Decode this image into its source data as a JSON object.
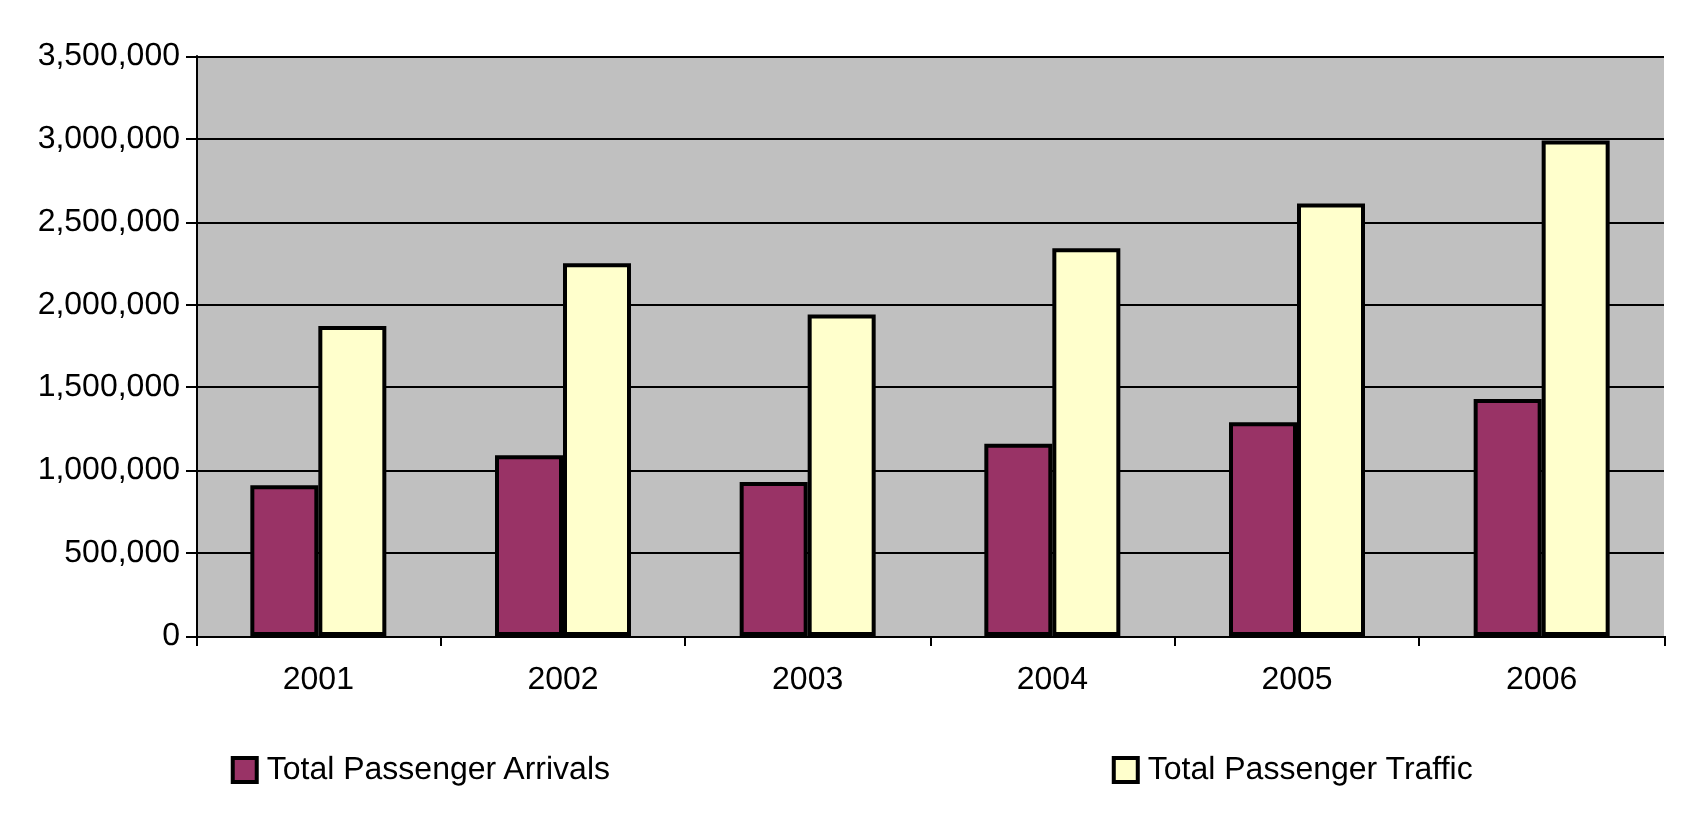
{
  "chart_data": {
    "type": "bar",
    "categories": [
      "2001",
      "2002",
      "2003",
      "2004",
      "2005",
      "2006"
    ],
    "series": [
      {
        "name": "Total Passenger Arrivals",
        "color": "#993366",
        "values": [
          910000,
          1090000,
          930000,
          1160000,
          1290000,
          1430000
        ]
      },
      {
        "name": "Total Passenger Traffic",
        "color": "#ffffcc",
        "values": [
          1870000,
          2250000,
          1940000,
          2340000,
          2610000,
          2990000
        ]
      }
    ],
    "ylim": [
      0,
      3500000
    ],
    "yticks": [
      {
        "value": 0,
        "label": "0"
      },
      {
        "value": 500000,
        "label": "500,000"
      },
      {
        "value": 1000000,
        "label": "1,000,000"
      },
      {
        "value": 1500000,
        "label": "1,500,000"
      },
      {
        "value": 2000000,
        "label": "2,000,000"
      },
      {
        "value": 2500000,
        "label": "2,500,000"
      },
      {
        "value": 3000000,
        "label": "3,000,000"
      },
      {
        "value": 3500000,
        "label": "3,500,000"
      }
    ],
    "grid": "y",
    "legend": "bottom"
  }
}
